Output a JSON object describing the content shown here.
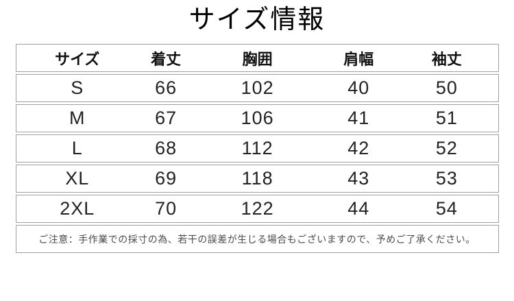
{
  "title": "サイズ情報",
  "chart_data": {
    "type": "table",
    "title": "サイズ情報",
    "columns": [
      "サイズ",
      "着丈",
      "胸囲",
      "肩幅",
      "袖丈"
    ],
    "rows": [
      [
        "S",
        "66",
        "102",
        "40",
        "50"
      ],
      [
        "M",
        "67",
        "106",
        "41",
        "51"
      ],
      [
        "L",
        "68",
        "112",
        "42",
        "52"
      ],
      [
        "XL",
        "69",
        "118",
        "43",
        "53"
      ],
      [
        "2XL",
        "70",
        "122",
        "44",
        "54"
      ]
    ],
    "note": "ご注意：手作業での採寸の為、若干の誤差が生じる場合もございますので、予めご了承ください。",
    "layout": {
      "grid": "row-boxes",
      "legend": "none"
    }
  },
  "colors": {
    "border": "#9e9e9e",
    "text": "#1a1a1a",
    "note_text": "#4a4a4a",
    "background": "#ffffff"
  }
}
